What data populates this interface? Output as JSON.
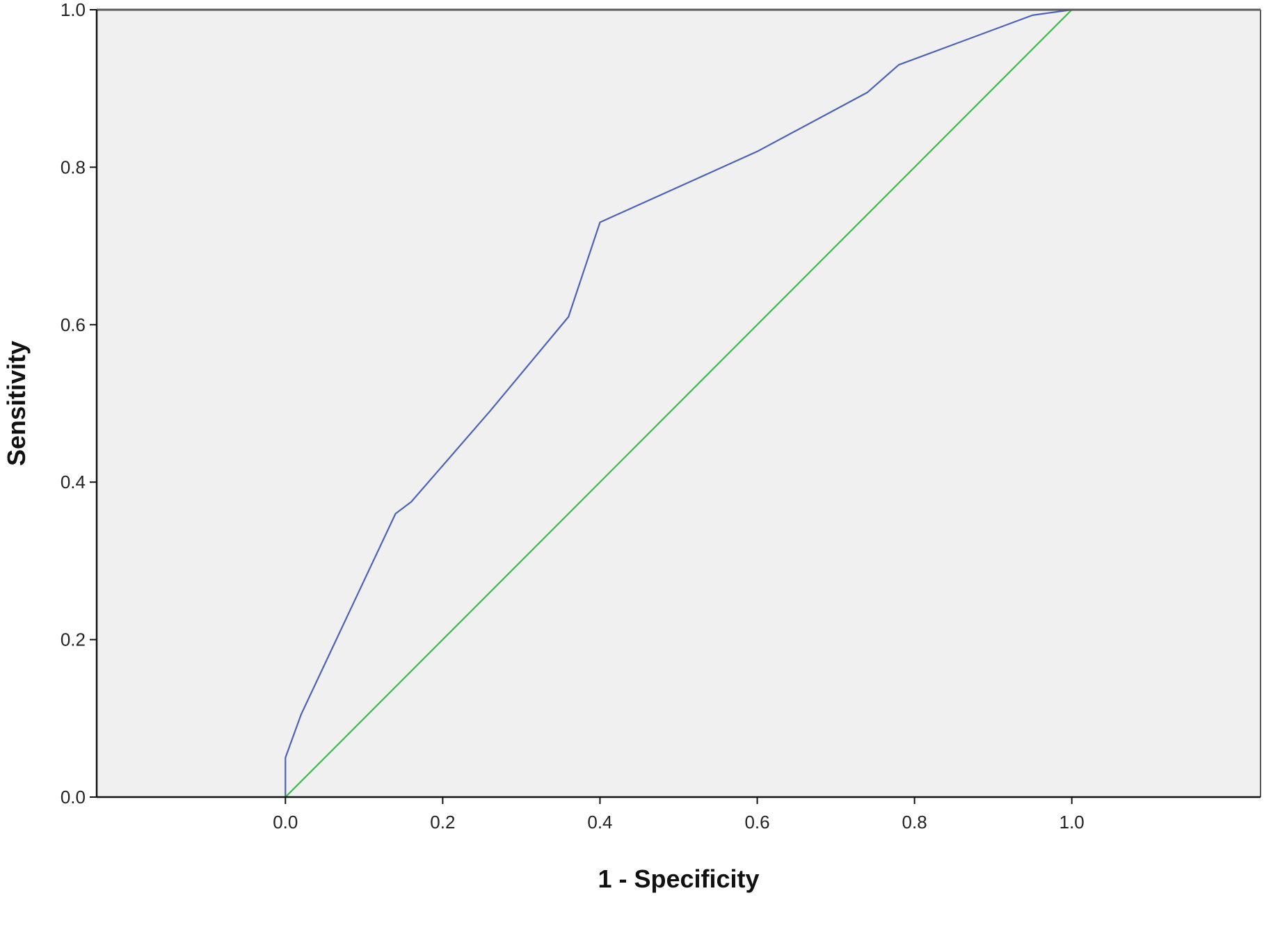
{
  "chart_data": {
    "type": "line",
    "xlabel": "1 - Specificity",
    "ylabel": "Sensitivity",
    "xlim": [
      -0.24,
      1.24
    ],
    "ylim": [
      0,
      1
    ],
    "x_ticks": [
      "0.0",
      "0.2",
      "0.4",
      "0.6",
      "0.8",
      "1.0"
    ],
    "x_tick_values": [
      0,
      0.2,
      0.4,
      0.6,
      0.8,
      1.0
    ],
    "y_ticks": [
      "0.0",
      "0.2",
      "0.4",
      "0.6",
      "0.8",
      "1.0"
    ],
    "y_tick_values": [
      0,
      0.2,
      0.4,
      0.6,
      0.8,
      1.0
    ],
    "grid": false,
    "background_color": "#f0f0f0",
    "series": [
      {
        "color": "#4a63b8",
        "x": [
          0.0,
          0.0,
          0.02,
          0.06,
          0.14,
          0.16,
          0.26,
          0.36,
          0.4,
          0.6,
          0.74,
          0.78,
          0.95,
          1.0
        ],
        "y": [
          0.0,
          0.05,
          0.105,
          0.19,
          0.36,
          0.375,
          0.49,
          0.61,
          0.73,
          0.82,
          0.895,
          0.93,
          0.993,
          1.0
        ]
      },
      {
        "color": "#3fb84a",
        "x": [
          0.0,
          1.0
        ],
        "y": [
          0.0,
          1.0
        ]
      }
    ]
  }
}
